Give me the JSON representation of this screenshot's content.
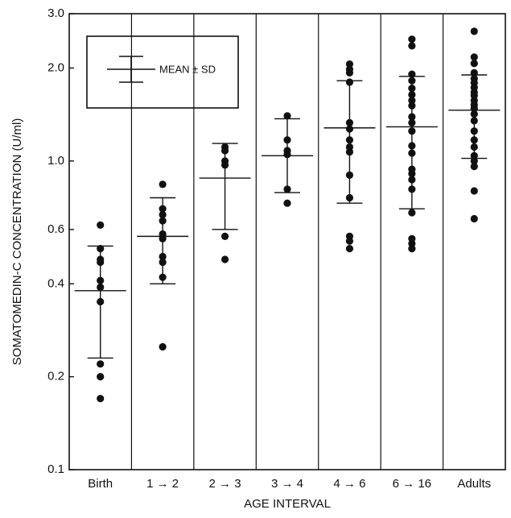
{
  "chart_data": {
    "type": "scatter",
    "y_label": "SOMATOMEDIN-C CONCENTRATION (U/ml)",
    "x_label": "AGE INTERVAL",
    "legend": "MEAN ± SD",
    "log_y": true,
    "color": "#111111",
    "categories": [
      "Birth",
      "1 → 2",
      "2 → 3",
      "3 → 4",
      "4 → 6",
      "6 → 16",
      "Adults"
    ],
    "points": [
      [
        0.62,
        0.52,
        0.48,
        0.47,
        0.41,
        0.39,
        0.35,
        0.22,
        0.2,
        0.17
      ],
      [
        0.84,
        0.7,
        0.67,
        0.64,
        0.58,
        0.56,
        0.49,
        0.47,
        0.42,
        0.25
      ],
      [
        1.11,
        1.08,
        1.0,
        0.97,
        0.57,
        0.48
      ],
      [
        1.4,
        1.17,
        1.08,
        1.05,
        0.81,
        0.73
      ],
      [
        2.06,
        1.98,
        1.93,
        1.8,
        1.33,
        1.27,
        1.17,
        1.11,
        1.07,
        0.9,
        0.76,
        0.57,
        0.55,
        0.52
      ],
      [
        2.48,
        2.36,
        1.91,
        1.82,
        1.72,
        1.64,
        1.57,
        1.51,
        1.39,
        1.33,
        1.25,
        1.12,
        1.06,
        0.94,
        0.91,
        0.87,
        0.81,
        0.68,
        0.56,
        0.54,
        0.52
      ],
      [
        2.63,
        2.17,
        2.07,
        1.93,
        1.85,
        1.79,
        1.73,
        1.67,
        1.63,
        1.57,
        1.52,
        1.48,
        1.42,
        1.35,
        1.25,
        1.17,
        1.11,
        1.04,
        1.0,
        0.96,
        0.8,
        0.65
      ]
    ],
    "mean": [
      0.38,
      0.57,
      0.88,
      1.04,
      1.28,
      1.29,
      1.46
    ],
    "upper": [
      0.53,
      0.76,
      1.14,
      1.37,
      1.82,
      1.88,
      1.9
    ],
    "lower": [
      0.23,
      0.4,
      0.6,
      0.79,
      0.73,
      0.7,
      1.02
    ],
    "ylim": [
      0.1,
      3
    ],
    "yticks": [
      0.1,
      0.2,
      0.4,
      0.6,
      {
        "value": 1,
        "label": "1.0"
      },
      {
        "value": 2,
        "label": "2.0"
      },
      {
        "value": 3,
        "label": "3.0"
      }
    ]
  }
}
